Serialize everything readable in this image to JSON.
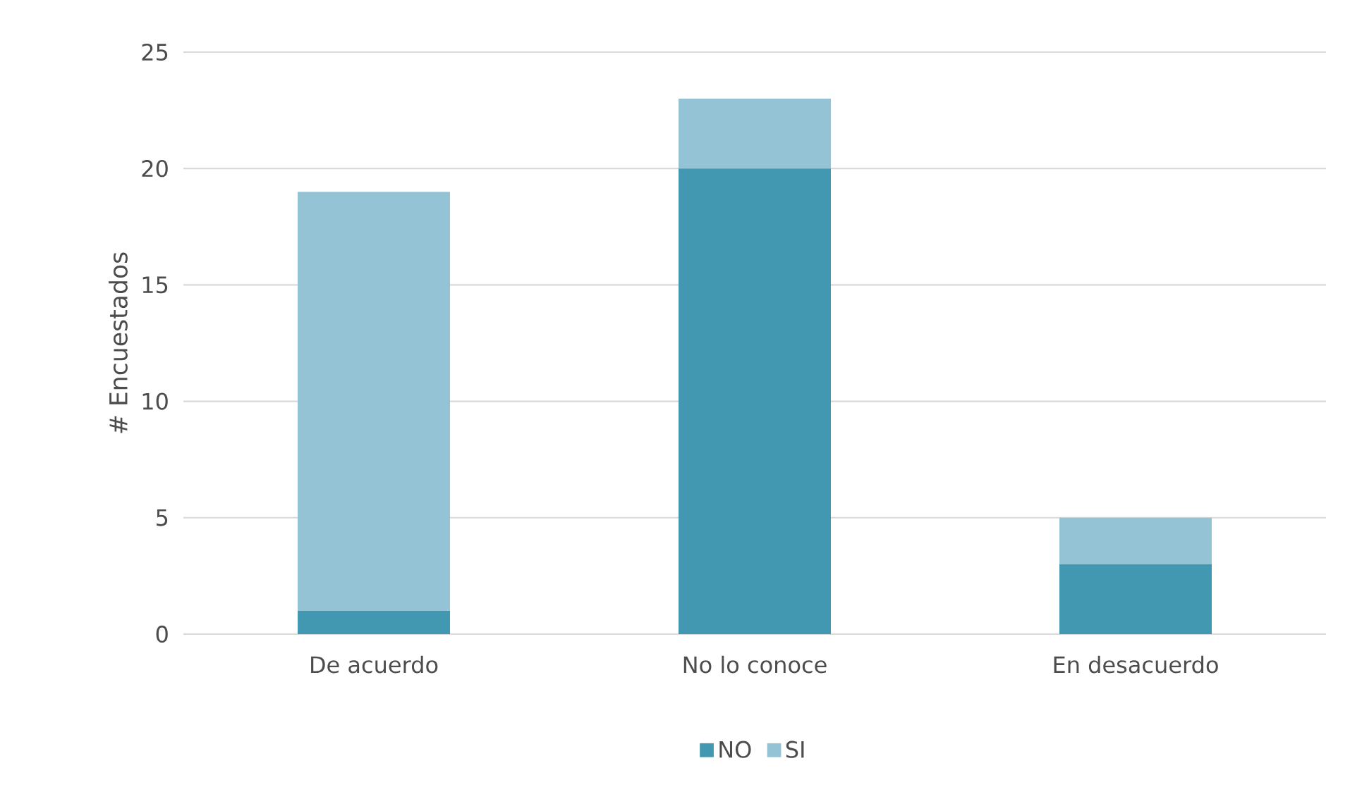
{
  "chart_data": {
    "type": "bar",
    "stacked": true,
    "ylabel": "# Encuestados",
    "categories": [
      "De acuerdo",
      "No lo conoce",
      "En desacuerdo"
    ],
    "series": [
      {
        "name": "NO",
        "color": "#4198b0",
        "values": [
          1,
          20,
          3
        ]
      },
      {
        "name": "SI",
        "color": "#93c3d4",
        "values": [
          18,
          3,
          2
        ]
      }
    ],
    "ylim": [
      0,
      25
    ],
    "yticks": [
      0,
      5,
      10,
      15,
      20,
      25
    ],
    "grid": "y",
    "legend": "bottom"
  }
}
